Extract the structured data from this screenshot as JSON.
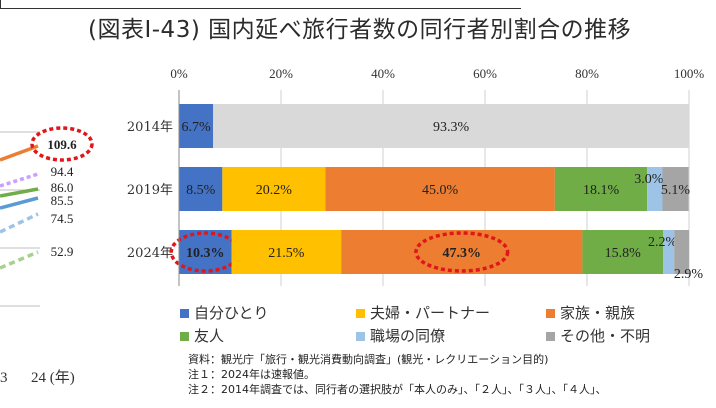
{
  "title": "(図表Ⅰ-43) 国内延べ旅行者数の同行者別割合の推移",
  "left_panel": {
    "labels": [
      "109.6",
      "94.4",
      "86.0",
      "85.5",
      "74.5",
      "52.9"
    ],
    "x_axis_labels": [
      "3",
      "24 (年)"
    ],
    "colors": [
      "#ed7d31",
      "#c9a0ff",
      "#70ad47",
      "#5b9bd5",
      "#9dc3e6",
      "#a9d18e"
    ],
    "line_values": [
      109.6,
      94.4,
      86.0,
      85.5,
      74.5,
      52.9
    ]
  },
  "legend": [
    {
      "label": "自分ひとり",
      "color": "#4472c4"
    },
    {
      "label": "夫婦・パートナー",
      "color": "#ffc000"
    },
    {
      "label": "家族・親族",
      "color": "#ed7d31"
    },
    {
      "label": "友人",
      "color": "#70ad47"
    },
    {
      "label": "職場の同僚",
      "color": "#9dc3e6"
    },
    {
      "label": "その他・不明",
      "color": "#a5a5a5"
    }
  ],
  "notes": [
    "資料：観光庁「旅行・観光消費動向調査」(観光・レクリエーション目的)",
    "注１：2024年は速報値。",
    "注２：2014年調査では、同行者の選択肢が「本人のみ」、「２人」、「３人」、「４人」、"
  ],
  "chart_data": {
    "type": "bar",
    "orientation": "horizontal",
    "stacked": true,
    "categories": [
      "2014年",
      "2019年",
      "2024年"
    ],
    "xlim": [
      0,
      100
    ],
    "x_ticks": [
      "0%",
      "20%",
      "40%",
      "60%",
      "80%",
      "100%"
    ],
    "grid": true,
    "segments": [
      {
        "row": "2014年",
        "series": "自分ひとり",
        "value": 6.7,
        "label": "6.7%",
        "color": "#4472c4"
      },
      {
        "row": "2014年",
        "series": "",
        "value": 93.3,
        "label": "93.3%",
        "color": "#d9d9d9"
      },
      {
        "row": "2019年",
        "series": "自分ひとり",
        "value": 8.5,
        "label": "8.5%",
        "color": "#4472c4"
      },
      {
        "row": "2019年",
        "series": "夫婦・パートナー",
        "value": 20.2,
        "label": "20.2%",
        "color": "#ffc000"
      },
      {
        "row": "2019年",
        "series": "家族・親族",
        "value": 45.0,
        "label": "45.0%",
        "color": "#ed7d31"
      },
      {
        "row": "2019年",
        "series": "友人",
        "value": 18.1,
        "label": "18.1%",
        "color": "#70ad47"
      },
      {
        "row": "2019年",
        "series": "職場の同僚",
        "value": 3.0,
        "label": "3.0%",
        "color": "#9dc3e6"
      },
      {
        "row": "2019年",
        "series": "その他・不明",
        "value": 5.1,
        "label": "5.1%",
        "color": "#a5a5a5"
      },
      {
        "row": "2024年",
        "series": "自分ひとり",
        "value": 10.3,
        "label": "10.3%",
        "color": "#4472c4"
      },
      {
        "row": "2024年",
        "series": "夫婦・パートナー",
        "value": 21.5,
        "label": "21.5%",
        "color": "#ffc000"
      },
      {
        "row": "2024年",
        "series": "家族・親族",
        "value": 47.3,
        "label": "47.3%",
        "color": "#ed7d31"
      },
      {
        "row": "2024年",
        "series": "友人",
        "value": 15.8,
        "label": "15.8%",
        "color": "#70ad47"
      },
      {
        "row": "2024年",
        "series": "職場の同僚",
        "value": 2.2,
        "label": "2.2%",
        "color": "#9dc3e6"
      },
      {
        "row": "2024年",
        "series": "その他・不明",
        "value": 2.9,
        "label": "2.9%",
        "color": "#a5a5a5"
      }
    ],
    "highlighted_labels": [
      "109.6",
      "10.3%",
      "47.3%"
    ]
  }
}
